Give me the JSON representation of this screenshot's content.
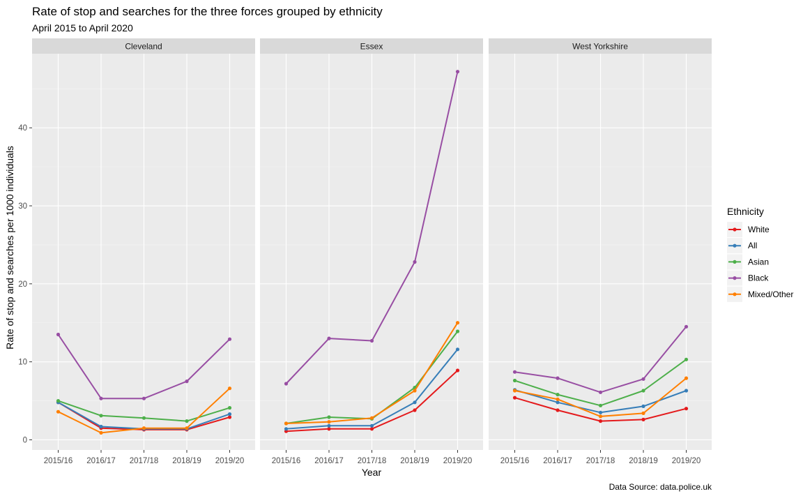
{
  "chart_data": {
    "type": "line",
    "title": "Rate of stop and searches for the three forces grouped by ethnicity",
    "subtitle": "April 2015 to April 2020",
    "xlabel": "Year",
    "ylabel": "Rate of stop and searches per 1000 individuals",
    "caption": "Data Source: data.police.uk",
    "categories": [
      "2015/16",
      "2016/17",
      "2017/18",
      "2018/19",
      "2019/20"
    ],
    "ylim": [
      -1.3,
      49.5
    ],
    "yticks": [
      0,
      10,
      20,
      30,
      40
    ],
    "grid": true,
    "legend": {
      "title": "Ethnicity",
      "placement": "right",
      "entries": [
        "White",
        "All",
        "Asian",
        "Black",
        "Mixed/Other"
      ]
    },
    "colors": {
      "White": "#e41a1c",
      "All": "#377eb8",
      "Asian": "#4daf4a",
      "Black": "#984ea3",
      "Mixed/Other": "#ff7f00"
    },
    "panels": [
      {
        "name": "Cleveland",
        "series": [
          {
            "name": "White",
            "values": [
              4.8,
              1.5,
              1.3,
              1.3,
              2.9
            ]
          },
          {
            "name": "All",
            "values": [
              4.8,
              1.7,
              1.4,
              1.4,
              3.3
            ]
          },
          {
            "name": "Asian",
            "values": [
              5.0,
              3.1,
              2.8,
              2.4,
              4.1
            ]
          },
          {
            "name": "Black",
            "values": [
              13.5,
              5.3,
              5.3,
              7.5,
              12.9
            ]
          },
          {
            "name": "Mixed/Other",
            "values": [
              3.6,
              0.9,
              1.5,
              1.5,
              6.6
            ]
          }
        ]
      },
      {
        "name": "Essex",
        "series": [
          {
            "name": "White",
            "values": [
              1.1,
              1.4,
              1.4,
              3.8,
              8.9
            ]
          },
          {
            "name": "All",
            "values": [
              1.4,
              1.8,
              1.8,
              4.8,
              11.6
            ]
          },
          {
            "name": "Asian",
            "values": [
              2.1,
              2.9,
              2.7,
              6.7,
              13.9
            ]
          },
          {
            "name": "Black",
            "values": [
              7.2,
              13.0,
              12.7,
              22.8,
              47.2
            ]
          },
          {
            "name": "Mixed/Other",
            "values": [
              2.1,
              2.3,
              2.8,
              6.3,
              15.0
            ]
          }
        ]
      },
      {
        "name": "West Yorkshire",
        "series": [
          {
            "name": "White",
            "values": [
              5.4,
              3.8,
              2.4,
              2.6,
              4.0
            ]
          },
          {
            "name": "All",
            "values": [
              6.4,
              4.8,
              3.5,
              4.3,
              6.3
            ]
          },
          {
            "name": "Asian",
            "values": [
              7.6,
              5.8,
              4.4,
              6.3,
              10.3
            ]
          },
          {
            "name": "Black",
            "values": [
              8.7,
              7.9,
              6.1,
              7.8,
              14.5
            ]
          },
          {
            "name": "Mixed/Other",
            "values": [
              6.3,
              5.2,
              3.0,
              3.4,
              7.9
            ]
          }
        ]
      }
    ]
  }
}
